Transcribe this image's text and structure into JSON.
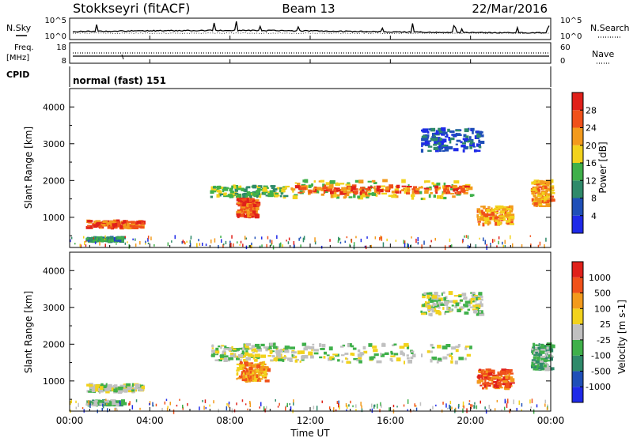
{
  "header": {
    "station": "Stokkseyri (fitACF)",
    "beam": "Beam 13",
    "date": "22/Mar/2016"
  },
  "noise_panel": {
    "left_label": "N.Sky",
    "right_label": "N.Search",
    "tick_top": "10^5",
    "tick_bottom": "10^0"
  },
  "freq_panel": {
    "left_label_1": "Freq.",
    "left_label_2": "[MHz]",
    "right_label": "Nave",
    "left_ticks": [
      "18",
      "8"
    ],
    "right_ticks": [
      "60",
      "0"
    ],
    "cpid_label": "CPID",
    "mode": "normal (fast) 151"
  },
  "chart_data": [
    {
      "type": "heatmap",
      "name": "power",
      "ylabel": "Slant Range [km]",
      "xlabel": "",
      "ylim": [
        180,
        4500
      ],
      "yticks": [
        1000,
        2000,
        3000,
        4000
      ],
      "colorbar_label": "Power [dB]",
      "colorbar_ticks": [
        "4",
        "8",
        "12",
        "16",
        "20",
        "24",
        "28"
      ],
      "colors": [
        "#1f2ae8",
        "#1f4fb8",
        "#2f8a6a",
        "#3fb04a",
        "#f2d21c",
        "#f39a1c",
        "#f0511a",
        "#e0201a"
      ],
      "regions": [
        {
          "t0": 0.8,
          "t1": 3.6,
          "r0": 700,
          "r1": 900,
          "level": 6
        },
        {
          "t0": 0.8,
          "t1": 2.6,
          "r0": 350,
          "r1": 450,
          "level": 2
        },
        {
          "t0": 7.0,
          "t1": 10.7,
          "r0": 1550,
          "r1": 1850,
          "level": 3
        },
        {
          "t0": 8.3,
          "t1": 9.3,
          "r0": 1000,
          "r1": 1500,
          "level": 6
        },
        {
          "t0": 10.7,
          "t1": 20.0,
          "r0": 1500,
          "r1": 2000,
          "level": 4
        },
        {
          "t0": 11.0,
          "t1": 19.8,
          "r0": 1650,
          "r1": 1850,
          "level": 6
        },
        {
          "t0": 20.3,
          "t1": 22.0,
          "r0": 800,
          "r1": 1300,
          "level": 5
        },
        {
          "t0": 23.0,
          "t1": 24.0,
          "r0": 1300,
          "r1": 2000,
          "level": 5
        },
        {
          "t0": 17.5,
          "t1": 20.5,
          "r0": 2800,
          "r1": 3400,
          "level": 1
        }
      ]
    },
    {
      "type": "heatmap",
      "name": "velocity",
      "ylabel": "Slant Range [km]",
      "xlabel": "Time UT",
      "ylim": [
        180,
        4500
      ],
      "yticks": [
        1000,
        2000,
        3000,
        4000
      ],
      "colorbar_label": "Velocity [m s-1]",
      "colorbar_ticks": [
        "1000",
        "500",
        "100",
        "25",
        "-25",
        "-100",
        "-500",
        "-1000"
      ],
      "colors": [
        "#1f2ae8",
        "#1f4fb8",
        "#2f8a6a",
        "#3fb04a",
        "#c0c0c0",
        "#f2d21c",
        "#f39a1c",
        "#f0511a",
        "#e0201a"
      ],
      "regions": [
        {
          "t0": 0.8,
          "t1": 3.6,
          "r0": 700,
          "r1": 900,
          "level": 4
        },
        {
          "t0": 0.8,
          "t1": 2.6,
          "r0": 350,
          "r1": 450,
          "level": 3
        },
        {
          "t0": 7.0,
          "t1": 10.7,
          "r0": 1550,
          "r1": 2000,
          "level": 4
        },
        {
          "t0": 8.3,
          "t1": 9.8,
          "r0": 1000,
          "r1": 1500,
          "level": 6
        },
        {
          "t0": 10.7,
          "t1": 20.0,
          "r0": 1500,
          "r1": 2000,
          "level": 4
        },
        {
          "t0": 20.3,
          "t1": 22.0,
          "r0": 800,
          "r1": 1300,
          "level": 7
        },
        {
          "t0": 23.0,
          "t1": 24.0,
          "r0": 1300,
          "r1": 2000,
          "level": 3
        },
        {
          "t0": 17.5,
          "t1": 20.5,
          "r0": 2800,
          "r1": 3400,
          "level": 4
        }
      ],
      "xticks": [
        "00:00",
        "04:00",
        "08:00",
        "12:00",
        "16:00",
        "20:00",
        "00:00"
      ]
    }
  ]
}
